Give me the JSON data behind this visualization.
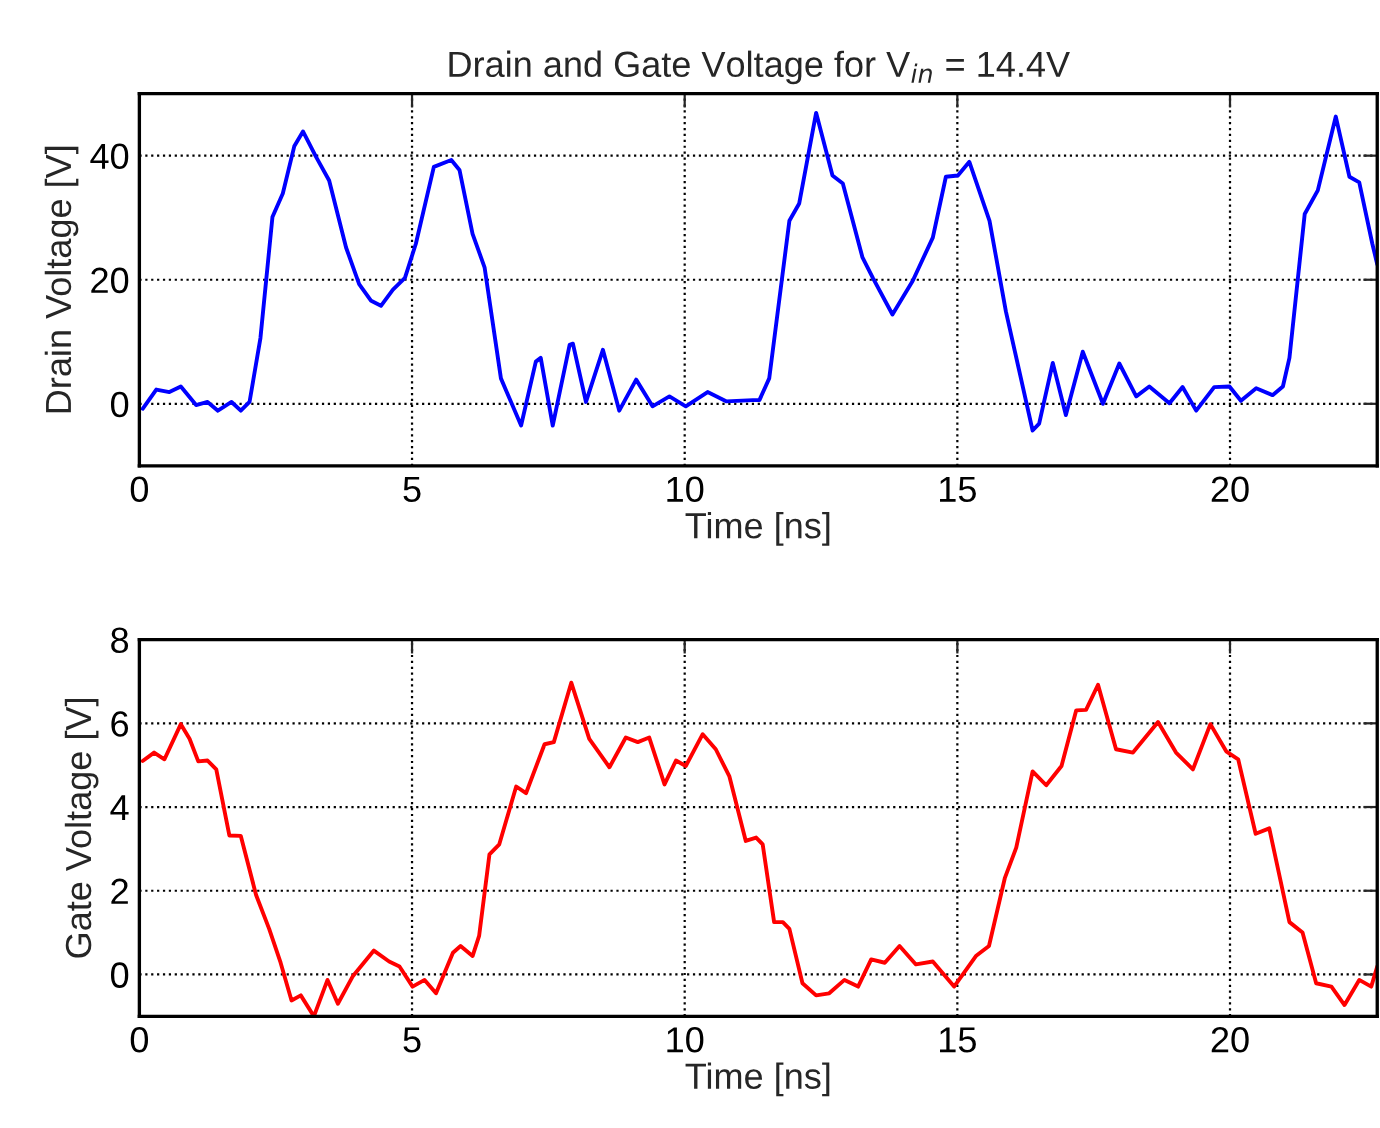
{
  "chart_data": [
    {
      "type": "line",
      "title": "Drain and Gate Voltage for V$_{in}$ = 14.4V",
      "xlabel": "Time [ns]",
      "ylabel": "Drain Voltage [V]",
      "x": [
        0.06,
        0.31,
        0.55,
        0.76,
        1.04,
        1.25,
        1.44,
        1.69,
        1.86,
        2.02,
        2.22,
        2.44,
        2.63,
        2.84,
        3.0,
        3.24,
        3.48,
        3.79,
        4.03,
        4.25,
        4.43,
        4.65,
        4.87,
        5.07,
        5.4,
        5.72,
        5.87,
        6.11,
        6.33,
        6.63,
        7.0,
        7.27,
        7.36,
        7.58,
        7.89,
        7.95,
        8.19,
        8.5,
        8.8,
        9.11,
        9.41,
        9.72,
        10.02,
        10.42,
        10.76,
        11.25,
        11.37,
        11.55,
        11.92,
        12.1,
        12.41,
        12.71,
        12.9,
        13.26,
        13.45,
        13.81,
        14.18,
        14.55,
        14.79,
        15.01,
        15.22,
        15.59,
        15.89,
        16.38,
        16.5,
        16.75,
        16.99,
        17.3,
        17.67,
        17.97,
        18.28,
        18.52,
        18.89,
        19.13,
        19.38,
        19.71,
        19.99,
        20.2,
        20.48,
        20.78,
        20.97,
        21.09,
        21.37,
        21.61,
        21.94,
        22.19,
        22.37,
        22.61,
        22.7
      ],
      "series": [
        {
          "color": "#0000ff",
          "values": [
            -0.8,
            2.3,
            1.9,
            2.8,
            -0.2,
            0.3,
            -1.1,
            0.3,
            -1.1,
            0.3,
            10.6,
            30.1,
            33.9,
            41.5,
            43.9,
            39.8,
            36.0,
            25.2,
            19.3,
            16.6,
            15.8,
            18.4,
            20.3,
            25.8,
            38.2,
            39.3,
            37.7,
            27.4,
            22.0,
            4.1,
            -3.5,
            6.8,
            7.4,
            -3.5,
            9.5,
            9.7,
            0.3,
            8.7,
            -1.1,
            3.9,
            -0.4,
            1.2,
            -0.4,
            1.9,
            0.4,
            0.6,
            0.6,
            4.1,
            29.5,
            32.3,
            46.9,
            36.8,
            35.5,
            23.6,
            20.3,
            14.4,
            19.8,
            26.8,
            36.6,
            36.8,
            39.0,
            29.5,
            14.9,
            -4.3,
            -3.2,
            6.6,
            -1.8,
            8.4,
            0,
            6.5,
            1.2,
            2.8,
            0.1,
            2.7,
            -1.1,
            2.7,
            2.8,
            0.5,
            2.5,
            1.4,
            2.8,
            7.4,
            30.6,
            34.4,
            46.3,
            36.6,
            35.7,
            25.8,
            22.5
          ]
        }
      ],
      "xlim": [
        0,
        22.7
      ],
      "ylim": [
        -10,
        50
      ],
      "xticks": [
        0,
        5,
        10,
        15,
        20
      ],
      "yticks": [
        0,
        20,
        40
      ],
      "grid": true
    },
    {
      "type": "line",
      "xlabel": "Time [ns]",
      "ylabel": "Gate Voltage [V]",
      "x": [
        0.06,
        0.27,
        0.46,
        0.76,
        0.92,
        1.08,
        1.25,
        1.41,
        1.65,
        1.86,
        2.14,
        2.38,
        2.59,
        2.79,
        2.96,
        3.2,
        3.45,
        3.64,
        3.91,
        4.3,
        4.58,
        4.77,
        5.01,
        5.23,
        5.44,
        5.75,
        5.89,
        6.11,
        6.23,
        6.42,
        6.6,
        6.91,
        7.09,
        7.43,
        7.6,
        7.92,
        8.25,
        8.62,
        8.92,
        9.14,
        9.35,
        9.63,
        9.84,
        10.02,
        10.33,
        10.57,
        10.82,
        11.12,
        11.31,
        11.43,
        11.64,
        11.8,
        11.92,
        12.16,
        12.41,
        12.65,
        12.93,
        13.18,
        13.42,
        13.67,
        13.94,
        14.24,
        14.55,
        14.94,
        15.34,
        15.58,
        15.87,
        16.08,
        16.38,
        16.63,
        16.91,
        17.18,
        17.36,
        17.58,
        17.91,
        18.22,
        18.68,
        19.01,
        19.32,
        19.64,
        19.93,
        20.15,
        20.47,
        20.72,
        21.09,
        21.33,
        21.58,
        21.86,
        22.1,
        22.37,
        22.59,
        22.7
      ],
      "series": [
        {
          "color": "#ff0000",
          "values": [
            5.1,
            5.3,
            5.14,
            5.98,
            5.63,
            5.09,
            5.11,
            4.9,
            3.32,
            3.31,
            1.9,
            1.09,
            0.28,
            -0.62,
            -0.5,
            -1.0,
            -0.13,
            -0.7,
            -0.05,
            0.57,
            0.31,
            0.19,
            -0.29,
            -0.13,
            -0.45,
            0.52,
            0.68,
            0.44,
            0.92,
            2.87,
            3.11,
            4.49,
            4.33,
            5.5,
            5.55,
            6.97,
            5.63,
            4.95,
            5.66,
            5.55,
            5.66,
            4.54,
            5.11,
            4.98,
            5.74,
            5.38,
            4.73,
            3.19,
            3.27,
            3.11,
            1.25,
            1.25,
            1.09,
            -0.21,
            -0.5,
            -0.45,
            -0.13,
            -0.29,
            0.36,
            0.28,
            0.68,
            0.24,
            0.31,
            -0.29,
            0.44,
            0.68,
            2.3,
            3.03,
            4.85,
            4.52,
            4.98,
            6.31,
            6.32,
            6.92,
            5.38,
            5.3,
            6.03,
            5.3,
            4.9,
            5.98,
            5.33,
            5.14,
            3.36,
            3.49,
            1.25,
            1.0,
            -0.21,
            -0.29,
            -0.73,
            -0.13,
            -0.29,
            0.19
          ]
        }
      ],
      "xlim": [
        0,
        22.7
      ],
      "ylim": [
        -1,
        8
      ],
      "xticks": [
        0,
        5,
        10,
        15,
        20
      ],
      "yticks": [
        0,
        2,
        4,
        6,
        8
      ],
      "grid": true
    }
  ]
}
